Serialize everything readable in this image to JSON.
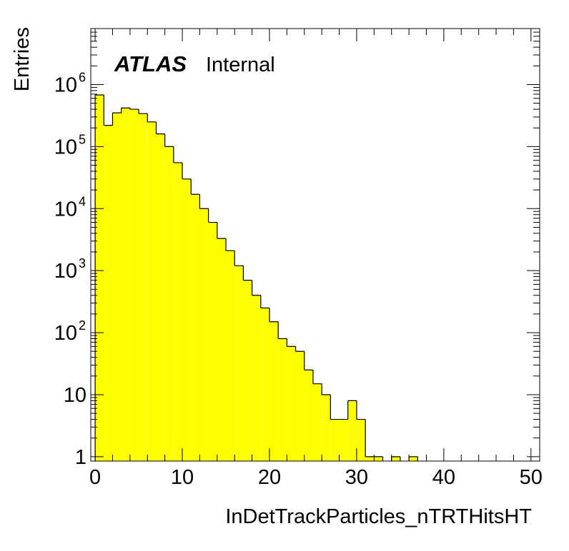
{
  "chart_data": {
    "type": "bar",
    "subtype": "histogram",
    "bins": {
      "start": 0,
      "width": 1,
      "count": 50
    },
    "values": [
      680000,
      220000,
      350000,
      420000,
      400000,
      340000,
      250000,
      160000,
      100000,
      55000,
      30000,
      17000,
      10000,
      6000,
      3300,
      2100,
      1200,
      700,
      400,
      250,
      150,
      80,
      60,
      50,
      25,
      15,
      10,
      4,
      4,
      8,
      4,
      1,
      1,
      0,
      1,
      0,
      1,
      0,
      0,
      0,
      0,
      0,
      0,
      0,
      0,
      0,
      0,
      0,
      0,
      0
    ],
    "xlabel": "InDetTrackParticles_nTRTHitsHT",
    "ylabel": "Entries",
    "xlim": [
      -0.5,
      51
    ],
    "ylim": [
      0.85,
      8000000
    ],
    "yscale": "log",
    "x_ticks": [
      "0",
      "10",
      "20",
      "30",
      "40",
      "50"
    ],
    "y_ticks": [
      {
        "value": 1,
        "base": "1",
        "exp": ""
      },
      {
        "value": 10,
        "base": "10",
        "exp": ""
      },
      {
        "value": 100,
        "base": "10",
        "exp": "2"
      },
      {
        "value": 1000,
        "base": "10",
        "exp": "3"
      },
      {
        "value": 10000,
        "base": "10",
        "exp": "4"
      },
      {
        "value": 100000,
        "base": "10",
        "exp": "5"
      },
      {
        "value": 1000000,
        "base": "10",
        "exp": "6"
      }
    ],
    "grid": false,
    "fill_color": "#ffff00",
    "line_color": "#000000"
  },
  "label": {
    "experiment": "ATLAS",
    "status": "Internal"
  }
}
